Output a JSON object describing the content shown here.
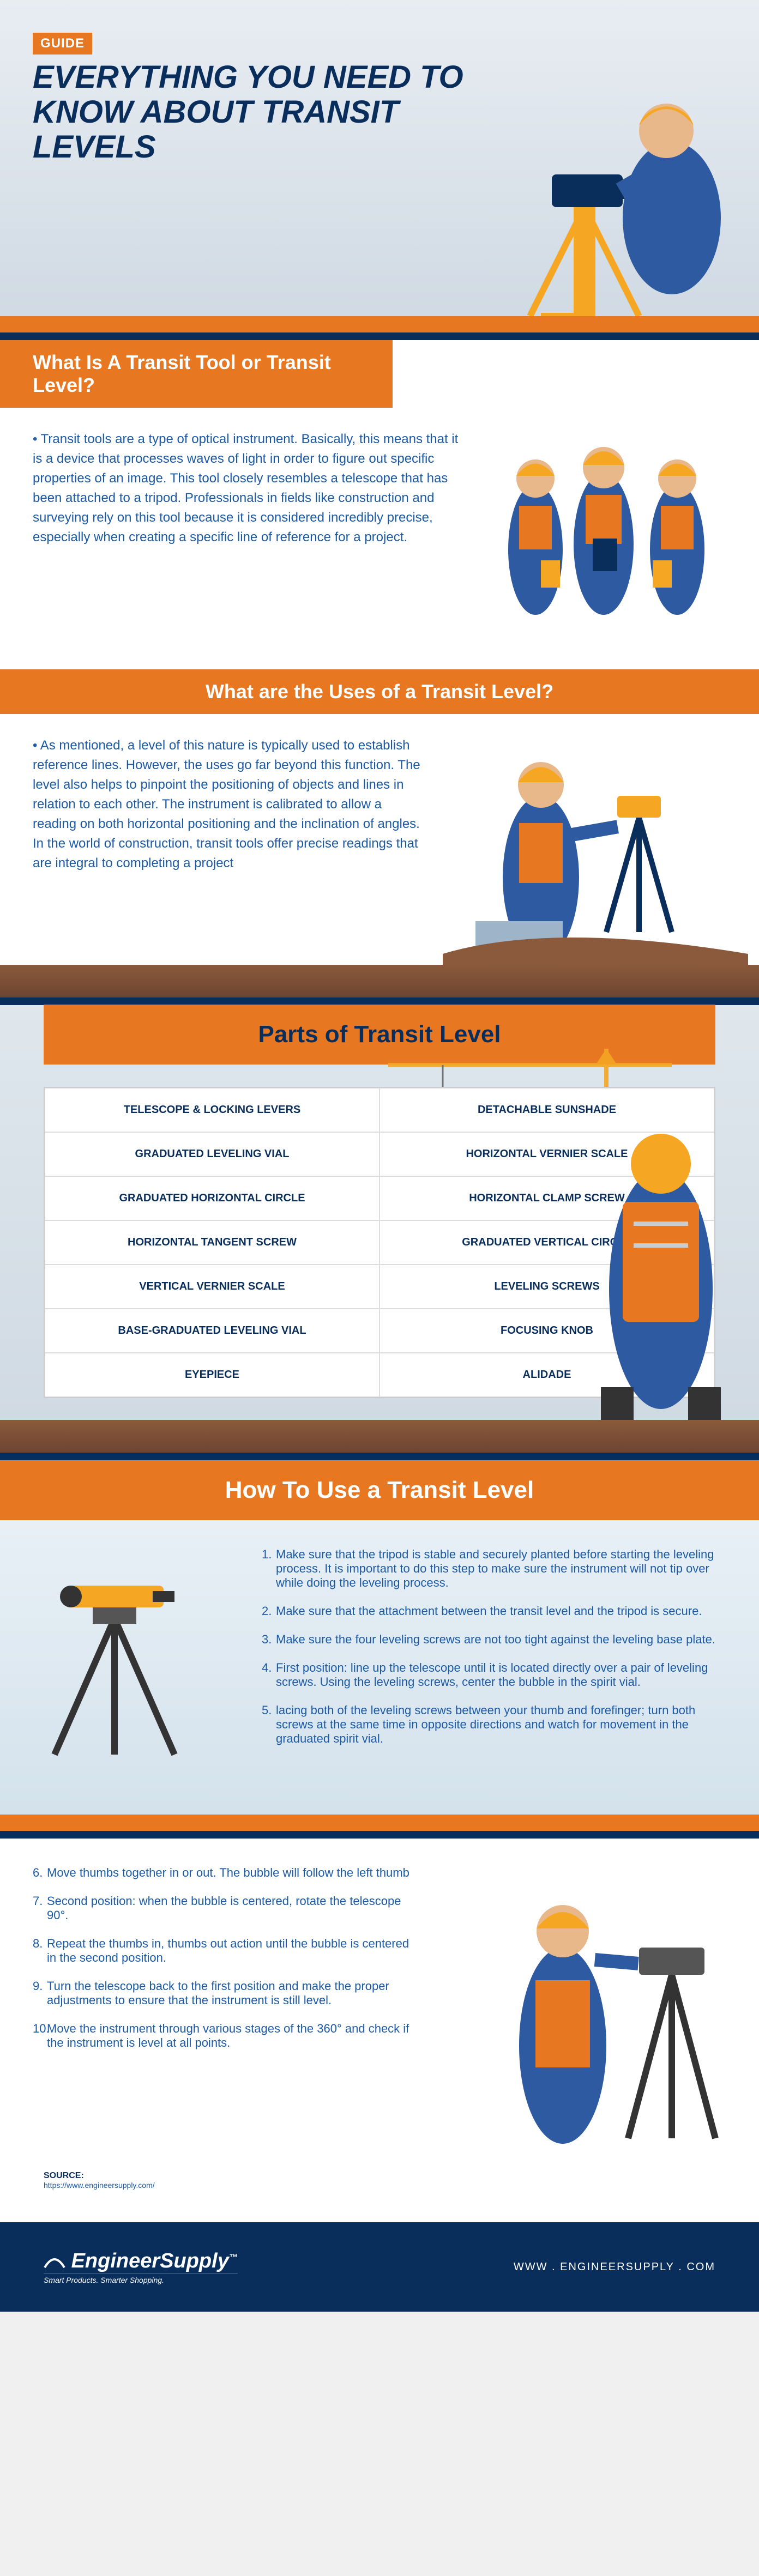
{
  "colors": {
    "navy": "#0a2e5c",
    "orange": "#e87722",
    "link_blue": "#1c5aa6",
    "hardhat": "#f5a623",
    "vest": "#e87722",
    "shirt": "#2d5aa0",
    "skin": "#e8b88a",
    "ground1": "#8b5a3c",
    "ground2": "#6d4530"
  },
  "hero": {
    "badge": "GUIDE",
    "title": "EVERYTHING YOU NEED TO KNOW ABOUT TRANSIT LEVELS"
  },
  "sec1": {
    "heading": "What Is A Transit Tool or Transit Level?",
    "text": "Transit tools are a type of optical instrument. Basically, this means that it is a device that processes waves of light in order to figure out specific properties of an image. This tool closely resembles a telescope that has been attached to a tripod. Professionals in fields like construction and surveying rely on this tool because it is considered incredibly precise, especially when creating a specific line of reference for a project."
  },
  "sec2": {
    "heading": "What are the Uses of a Transit Level?",
    "text": "As mentioned, a level of this nature is typically used to establish reference lines. However, the uses go far beyond this function. The level also helps to pinpoint the positioning of objects and lines in relation to each other. The instrument is calibrated to allow a reading on both horizontal positioning and the inclination of angles. In the world of construction, transit tools offer precise readings that are integral to completing a project"
  },
  "parts": {
    "heading": "Parts of Transit Level",
    "rows": [
      [
        "TELESCOPE & LOCKING LEVERS",
        "DETACHABLE SUNSHADE"
      ],
      [
        "GRADUATED LEVELING VIAL",
        "HORIZONTAL VERNIER SCALE"
      ],
      [
        "GRADUATED HORIZONTAL CIRCLE",
        "HORIZONTAL CLAMP SCREW"
      ],
      [
        "HORIZONTAL TANGENT SCREW",
        "GRADUATED VERTICAL CIRCLE"
      ],
      [
        "VERTICAL VERNIER SCALE",
        "LEVELING SCREWS"
      ],
      [
        "BASE-GRADUATED LEVELING VIAL",
        "FOCUSING KNOB"
      ],
      [
        "EYEPIECE",
        "ALIDADE"
      ]
    ]
  },
  "howto": {
    "heading": "How To Use a Transit Level",
    "steps1": [
      "Make sure that the tripod is stable and securely planted before starting the leveling process. It is important to do this step to make sure the instrument will not tip over while doing the leveling process.",
      "Make sure that the attachment between the transit level and the tripod is secure.",
      "Make sure the four leveling screws are not too tight against the leveling base plate.",
      "First position: line up the telescope until it is located directly over a pair of leveling screws. Using the leveling screws, center the bubble in the spirit vial.",
      "lacing both of the leveling screws between your thumb and forefinger; turn both screws at the same time in opposite directions and watch for movement in the graduated spirit vial."
    ],
    "steps2": [
      "Move thumbs together in or out. The bubble will follow the left thumb",
      "Second position: when the bubble is centered, rotate the telescope 90°.",
      "Repeat the thumbs in, thumbs out action until the bubble is centered in the second position.",
      "Turn the telescope back to the first position and make the proper adjustments to ensure that the instrument is still level.",
      "Move the instrument through various stages of the 360° and check if the instrument is level at all points."
    ]
  },
  "source": {
    "label": "SOURCE:",
    "url": "https://www.engineersupply.com/"
  },
  "footer": {
    "brand": "EngineerSupply",
    "tm": "™",
    "tagline": "Smart Products. Smarter Shopping.",
    "url": "WWW . ENGINEERSUPPLY . COM"
  }
}
